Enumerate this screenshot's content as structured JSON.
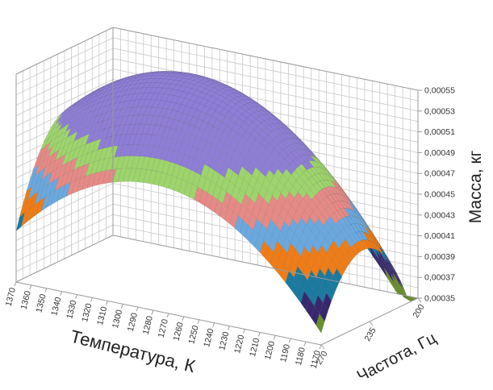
{
  "chart_data": {
    "type": "surface3d",
    "xlabel": "Температура, К",
    "ylabel": "Частота, Гц",
    "zlabel": "Масса, кг",
    "x_ticks": [
      "1370",
      "1360",
      "1350",
      "1340",
      "1330",
      "1320",
      "1310",
      "1300",
      "1290",
      "1280",
      "1270",
      "1260",
      "1250",
      "1240",
      "1230",
      "1220",
      "1210",
      "1200",
      "1190",
      "1180",
      "1170"
    ],
    "y_ticks": [
      "270",
      "235",
      "200"
    ],
    "z_ticks": [
      "0,00055",
      "0,00053",
      "0,00051",
      "0,00049",
      "0,00047",
      "0,00045",
      "0,00043",
      "0,00041",
      "0,00039",
      "0,00037",
      "0,00035"
    ],
    "xlim": [
      1170,
      1370
    ],
    "ylim": [
      200,
      270
    ],
    "zlim": [
      0.00035,
      0.00055
    ],
    "z_peak": 0.00055,
    "peak_x": 1290,
    "peak_y": 235,
    "z_at_x1370_y270": 0.00041,
    "z_at_x1170_y270": 0.00035,
    "z_at_x1170_y200": 0.00037,
    "z_at_x1370_y200": 0.00049,
    "grid": true,
    "colors": [
      "#6b8f2a",
      "#37286e",
      "#1a7aa0",
      "#ef7c16",
      "#6aa8de",
      "#e58a86",
      "#9dd46c",
      "#8e7ed6"
    ]
  }
}
